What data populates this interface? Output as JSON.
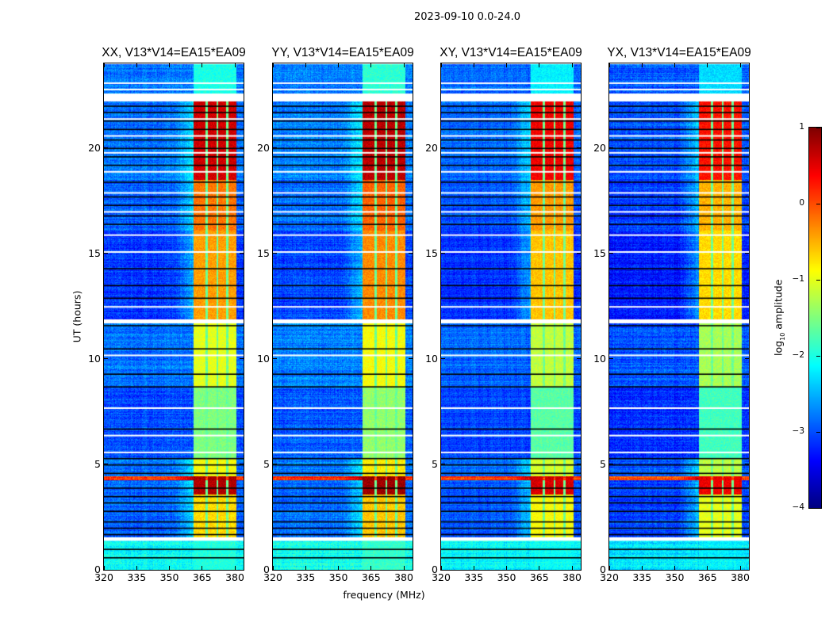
{
  "chart_data": {
    "type": "heatmap",
    "title": "2023-09-10 0.0-24.0",
    "xlabel": "frequency (MHz)",
    "ylabel": "UT (hours)",
    "xlim": [
      320,
      384
    ],
    "ylim": [
      0,
      24
    ],
    "xticks": [
      "320",
      "335",
      "350",
      "365",
      "380"
    ],
    "xtick_values": [
      320,
      335,
      350,
      365,
      380
    ],
    "yticks": [
      "0",
      "5",
      "10",
      "15",
      "20"
    ],
    "ytick_values": [
      0,
      5,
      10,
      15,
      20
    ],
    "colorbar": {
      "label": "log",
      "label_sub": "10",
      "label_rest": " amplitude",
      "range": [
        -4,
        1
      ],
      "ticks": [
        "1",
        "0",
        "−1",
        "−2",
        "−3",
        "−4"
      ],
      "tick_values": [
        1,
        0,
        -1,
        -2,
        -3,
        -4
      ],
      "colormap": "jet"
    },
    "band": {
      "start_mhz": 361,
      "end_mhz": 380.5,
      "gaps_mhz": [
        [
          366.3,
          367.3
        ],
        [
          371.3,
          372.3
        ],
        [
          375.8,
          376.8
        ]
      ]
    },
    "segments": [
      {
        "t0": 0,
        "t1": 1.4,
        "bg": -2.1,
        "band": -2.0
      },
      {
        "t0": 1.55,
        "t1": 3.6,
        "bg": -2.9,
        "band": -0.7
      },
      {
        "t0": 3.6,
        "t1": 4.25,
        "bg": -2.9,
        "band": 0.75
      },
      {
        "t0": 4.25,
        "t1": 4.45,
        "bg": 0.1,
        "band": 0.8
      },
      {
        "t0": 4.45,
        "t1": 5.3,
        "bg": -2.8,
        "band": -0.9
      },
      {
        "t0": 5.3,
        "t1": 8.7,
        "bg": -3.0,
        "band": -1.5
      },
      {
        "t0": 8.7,
        "t1": 11.7,
        "bg": -2.8,
        "band": -1.0
      },
      {
        "t0": 11.9,
        "t1": 16.1,
        "bg": -3.1,
        "band": -0.4
      },
      {
        "t0": 16.1,
        "t1": 18.5,
        "bg": -2.9,
        "band": -0.2
      },
      {
        "t0": 18.5,
        "t1": 22.2,
        "bg": -2.8,
        "band": 0.6
      },
      {
        "t0": 22.6,
        "t1": 24,
        "bg": -2.8,
        "band": -2.0
      }
    ],
    "masked_rows_hours": [
      1.45,
      5.6,
      6.4,
      7.7,
      10.2,
      11.8,
      12.5,
      15.1,
      15.9,
      17.0,
      17.9,
      18.9,
      19.8,
      20.6,
      21.4,
      22.4,
      22.8,
      23.1
    ],
    "zero_rows_hours": [
      0.6,
      1.0,
      1.7,
      2.0,
      2.3,
      2.8,
      3.2,
      3.5,
      3.9,
      4.6,
      5.0,
      5.3,
      6.7,
      8.7,
      9.3,
      10.5,
      11.6,
      12.9,
      13.5,
      14.3,
      16.4,
      16.8,
      17.3,
      17.7,
      18.4,
      19.2,
      19.6,
      20.0,
      20.4,
      20.9,
      21.3,
      21.7,
      22.0
    ],
    "panels": [
      {
        "title": "XX, V13*V14=EA15*EA09",
        "offset": 0.0,
        "seed": 11
      },
      {
        "title": "YY, V13*V14=EA15*EA09",
        "offset": 0.05,
        "seed": 23
      },
      {
        "title": "XY, V13*V14=EA15*EA09",
        "offset": -0.1,
        "seed": 37
      },
      {
        "title": "YX, V13*V14=EA15*EA09",
        "offset": -0.15,
        "seed": 51
      }
    ]
  }
}
